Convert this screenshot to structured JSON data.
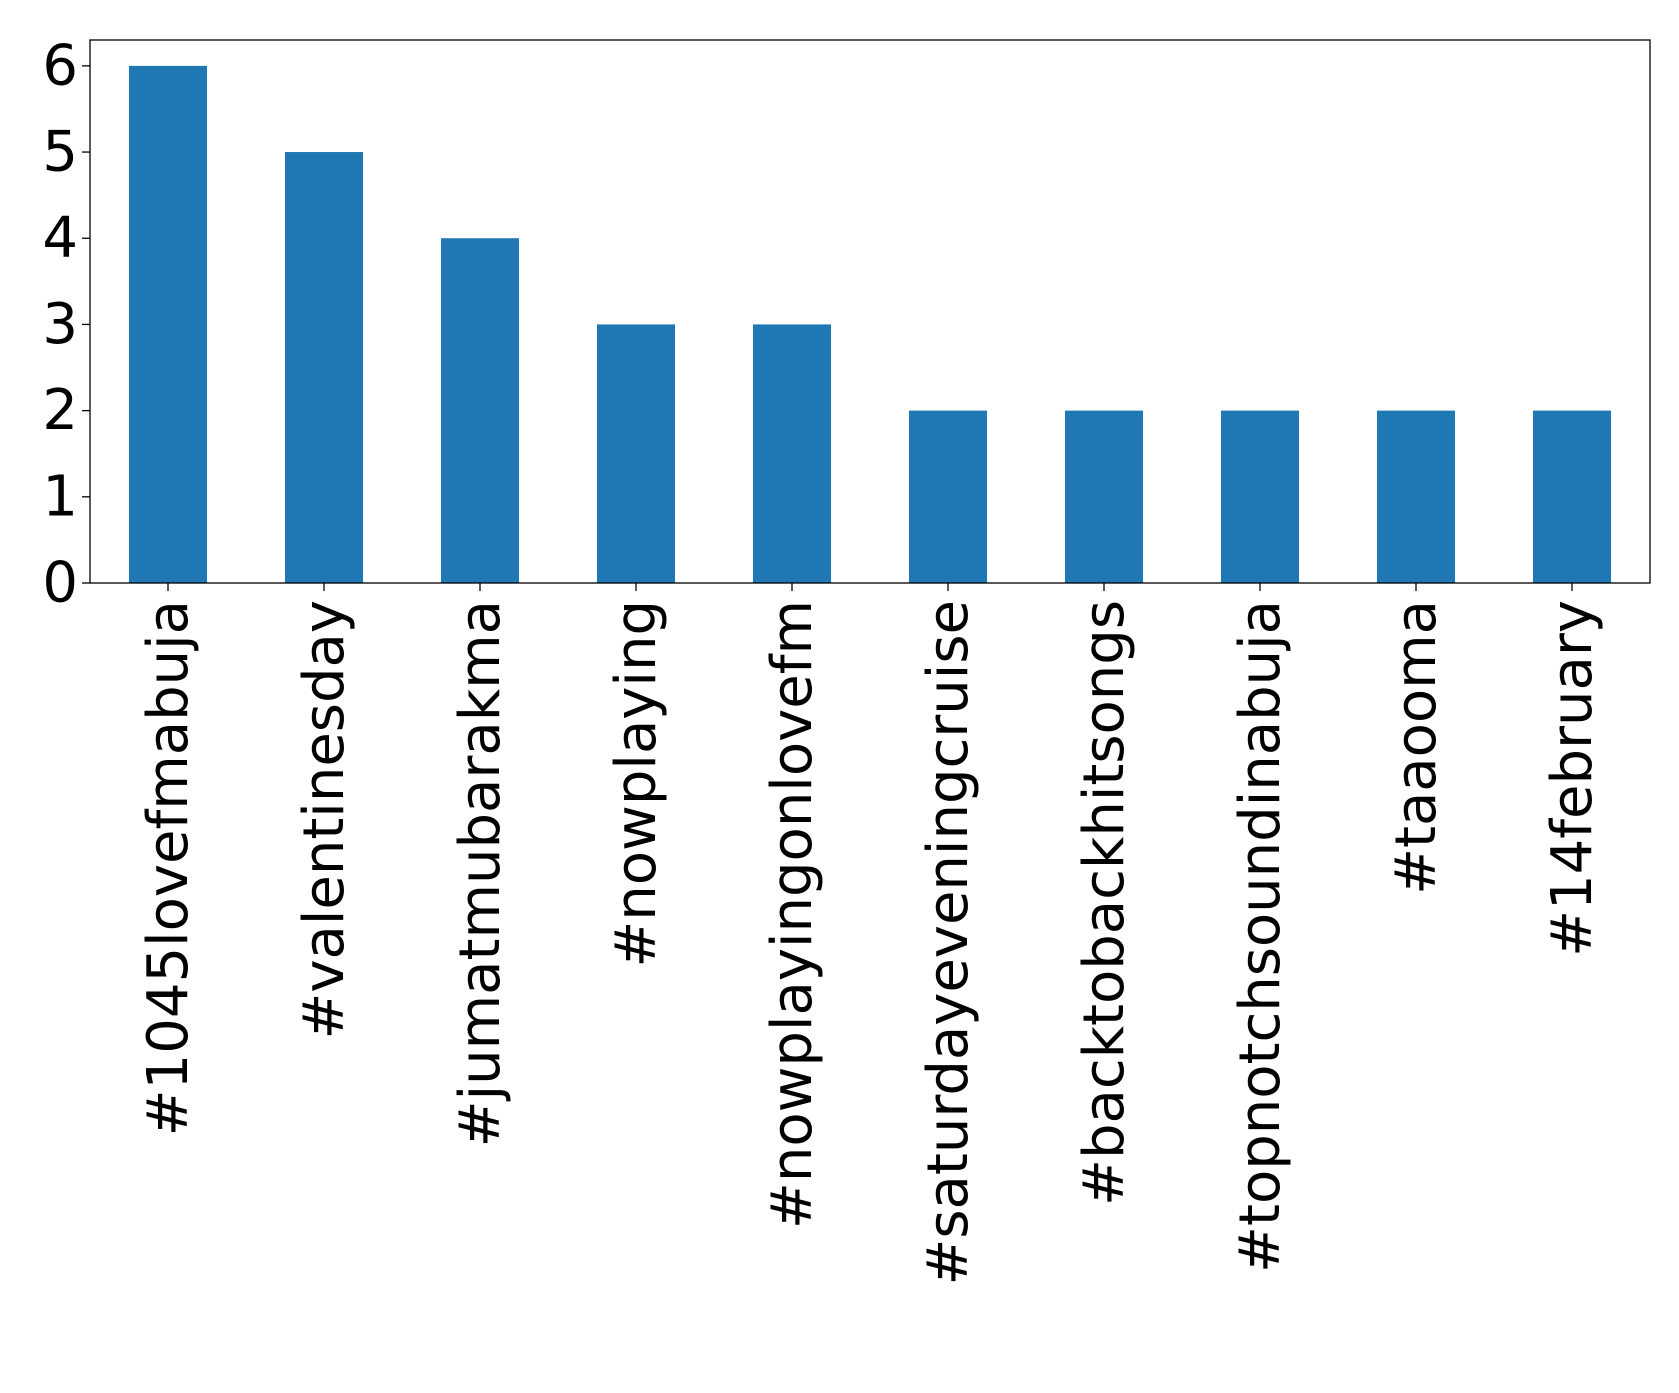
{
  "chart_data": {
    "type": "bar",
    "title": "",
    "xlabel": "",
    "ylabel": "",
    "categories": [
      "#1045lovefmabuja",
      "#valentinesday",
      "#jumatmubarakma",
      "#nowplaying",
      "#nowplayingonlovefm",
      "#saturdayeveningcruise",
      "#backtobackhitsongs",
      "#topnotchsoundinabuja",
      "#taaooma",
      "#14february"
    ],
    "values": [
      6,
      5,
      4,
      3,
      3,
      2,
      2,
      2,
      2,
      2
    ],
    "ylim": [
      0,
      6.3
    ],
    "yticks": [
      0,
      1,
      2,
      3,
      4,
      5,
      6
    ],
    "bar_color": "#1f77b4",
    "grid": false,
    "legend": "none"
  }
}
